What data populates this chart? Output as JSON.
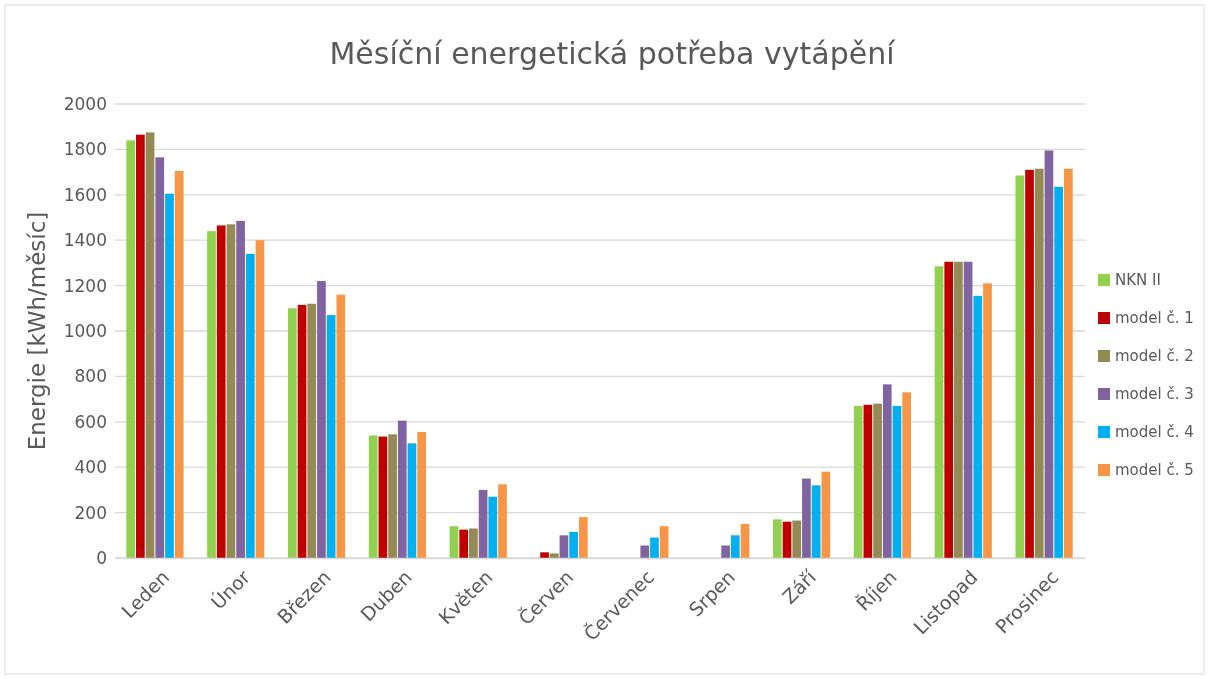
{
  "chart_data": {
    "type": "bar",
    "title": "Měsíční energetická potřeba vytápění",
    "ylabel": "Energie [kWh/měsíc]",
    "categories": [
      "Leden",
      "Únor",
      "Březen",
      "Duben",
      "Květen",
      "Červen",
      "Červenec",
      "Srpen",
      "Září",
      "Říjen",
      "Listopad",
      "Prosinec"
    ],
    "series": [
      {
        "name": "NKN II",
        "color": "#92d050",
        "values": [
          1840,
          1440,
          1100,
          540,
          140,
          0,
          0,
          0,
          170,
          670,
          1285,
          1685
        ]
      },
      {
        "name": "model č. 1",
        "color": "#c00000",
        "values": [
          1865,
          1465,
          1115,
          535,
          125,
          25,
          0,
          0,
          160,
          675,
          1305,
          1710
        ]
      },
      {
        "name": "model č. 2",
        "color": "#948a54",
        "values": [
          1875,
          1470,
          1120,
          545,
          130,
          20,
          0,
          0,
          165,
          680,
          1305,
          1715
        ]
      },
      {
        "name": "model č. 3",
        "color": "#8064a2",
        "values": [
          1765,
          1485,
          1220,
          605,
          300,
          100,
          55,
          55,
          350,
          765,
          1305,
          1795
        ]
      },
      {
        "name": "model č. 4",
        "color": "#00b0f0",
        "values": [
          1605,
          1340,
          1070,
          505,
          270,
          115,
          90,
          100,
          320,
          670,
          1155,
          1635
        ]
      },
      {
        "name": "model č. 5",
        "color": "#f79646",
        "values": [
          1705,
          1400,
          1160,
          555,
          325,
          180,
          140,
          150,
          380,
          730,
          1210,
          1715
        ]
      }
    ],
    "ylim": [
      0,
      2000
    ],
    "yticks": [
      0,
      200,
      400,
      600,
      800,
      1000,
      1200,
      1400,
      1600,
      1800,
      2000
    ],
    "grid": "y",
    "legend": "right"
  }
}
